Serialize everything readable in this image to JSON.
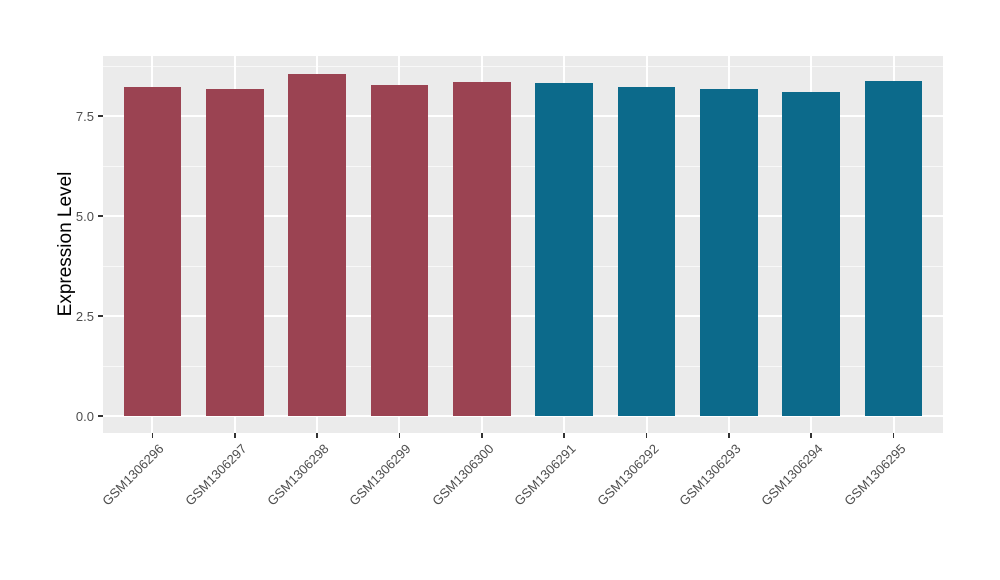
{
  "chart_data": {
    "type": "bar",
    "title": "",
    "xlabel": "",
    "ylabel": "Expression Level",
    "categories": [
      "GSM1306296",
      "GSM1306297",
      "GSM1306298",
      "GSM1306299",
      "GSM1306300",
      "GSM1306291",
      "GSM1306292",
      "GSM1306293",
      "GSM1306294",
      "GSM1306295"
    ],
    "values": [
      8.22,
      8.17,
      8.55,
      8.28,
      8.35,
      8.32,
      8.22,
      8.17,
      8.11,
      8.37
    ],
    "bar_colors": [
      "#9B4352",
      "#9B4352",
      "#9B4352",
      "#9B4352",
      "#9B4352",
      "#0C6A8B",
      "#0C6A8B",
      "#0C6A8B",
      "#0C6A8B",
      "#0C6A8B"
    ],
    "ylim": [
      -0.425,
      9.0
    ],
    "yticks": [
      0.0,
      2.5,
      5.0,
      7.5
    ],
    "ytick_labels": [
      "0.0",
      "2.5",
      "5.0",
      "7.5"
    ],
    "minor_yticks": [
      1.25,
      3.75,
      6.25,
      8.75
    ],
    "bar_width_fraction": 0.7,
    "x_padding": 0.6,
    "grid": "on",
    "legend": "none",
    "panel_bg": "#EBEBEB",
    "major_grid_color": "#FFFFFF",
    "minor_grid_color": "rgba(255,255,255,0.65)"
  }
}
